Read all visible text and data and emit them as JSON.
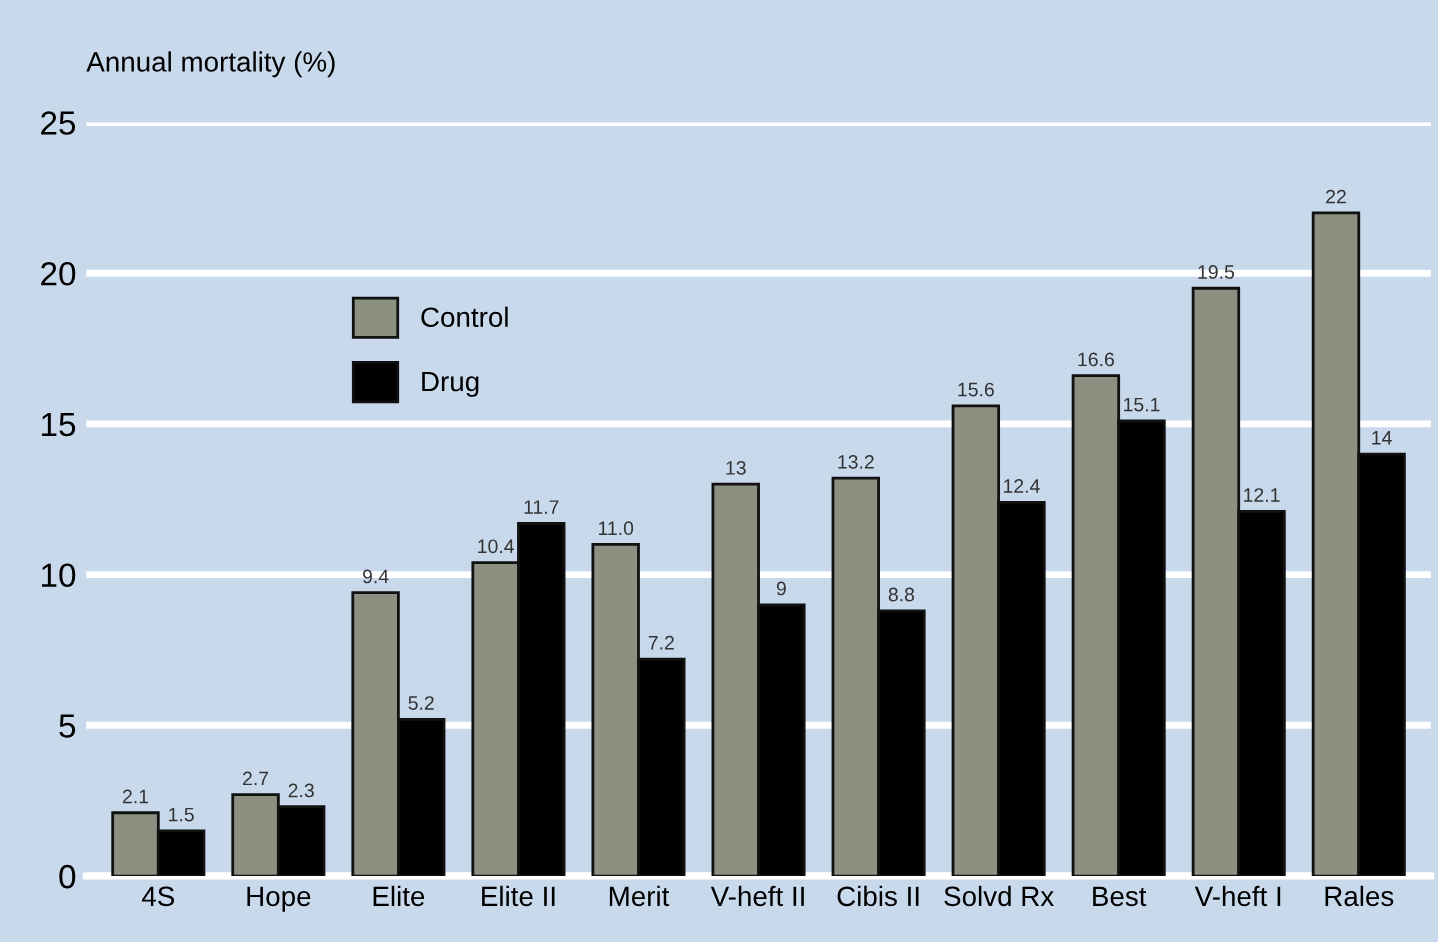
{
  "chart_data": {
    "type": "bar",
    "ylabel": "Annual mortality (%)",
    "categories": [
      "4S",
      "Hope",
      "Elite",
      "Elite II",
      "Merit",
      "V-heft II",
      "Cibis II",
      "Solvd Rx",
      "Best",
      "V-heft I",
      "Rales"
    ],
    "series": [
      {
        "name": "Control",
        "color": "#8b9080",
        "values": [
          2.1,
          2.7,
          9.4,
          10.4,
          11.0,
          13,
          13.2,
          15.6,
          16.6,
          19.5,
          22
        ],
        "value_labels": [
          "2.1",
          "2.7",
          "9.4",
          "10.4",
          "11.0",
          "13",
          "13.2",
          "15.6",
          "16.6",
          "19.5",
          "22"
        ]
      },
      {
        "name": "Drug",
        "color": "#000000",
        "values": [
          1.5,
          2.3,
          5.2,
          11.7,
          7.2,
          9,
          8.8,
          12.4,
          15.1,
          12.1,
          14
        ],
        "value_labels": [
          "1.5",
          "2.3",
          "5.2",
          "11.7",
          "7.2",
          "9",
          "8.8",
          "12.4",
          "15.1",
          "12.1",
          "14"
        ]
      }
    ],
    "ylim": [
      0,
      25
    ],
    "yticks": [
      0,
      5,
      10,
      15,
      20,
      25
    ],
    "grid": "y",
    "legend": "top left"
  }
}
